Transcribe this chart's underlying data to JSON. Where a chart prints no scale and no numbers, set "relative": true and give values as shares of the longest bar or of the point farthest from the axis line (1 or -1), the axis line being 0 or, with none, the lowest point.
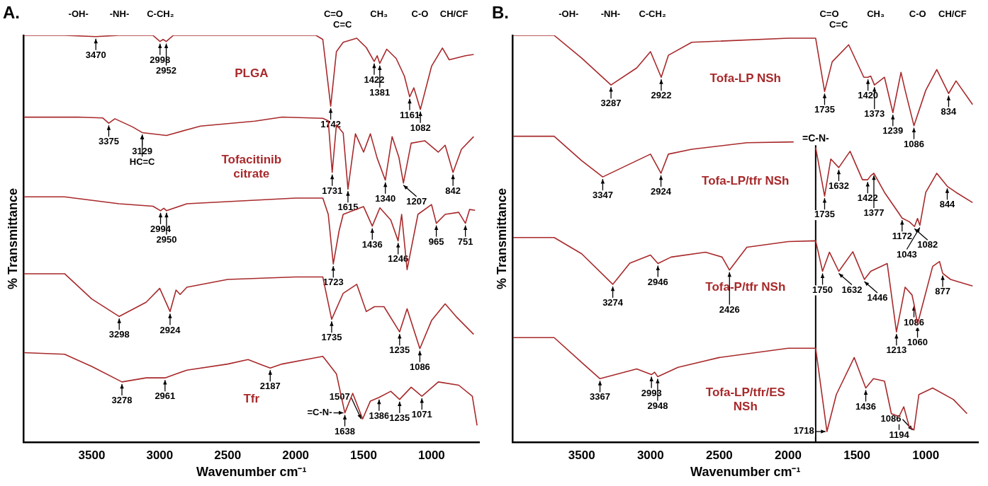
{
  "chart_data": [
    {
      "type": "line",
      "title": "A.",
      "xlabel": "Wavenumber cm⁻¹",
      "ylabel": "% Transmittance",
      "relative": true,
      "xlim": [
        4000,
        650
      ],
      "xticks": [
        3500,
        3000,
        2500,
        2000,
        1500,
        1000
      ],
      "grid": false,
      "legend": false,
      "marker": "none",
      "line_style": "solid",
      "series": [
        {
          "name": "PLGA",
          "color": "#a8292b",
          "x": [
            4000,
            3700,
            3470,
            3300,
            3050,
            2998,
            2975,
            2952,
            2900,
            2500,
            2000,
            1850,
            1800,
            1742,
            1700,
            1650,
            1550,
            1480,
            1422,
            1400,
            1381,
            1330,
            1260,
            1200,
            1161,
            1130,
            1082,
            1000,
            920,
            870,
            750,
            690
          ],
          "values": [
            1,
            1,
            0.997,
            1,
            1,
            0.985,
            0.99,
            0.985,
            1,
            1,
            1,
            1,
            0.99,
            0.826,
            0.96,
            0.983,
            0.993,
            0.97,
            0.936,
            0.95,
            0.931,
            0.966,
            0.943,
            0.9,
            0.849,
            0.871,
            0.818,
            0.924,
            0.969,
            0.94,
            0.95,
            0.953
          ]
        },
        {
          "name": "Tofacitinib citrate",
          "color": "#a8292b",
          "x": [
            4000,
            3600,
            3420,
            3375,
            3330,
            3200,
            3129,
            2950,
            2700,
            2300,
            2100,
            1800,
            1760,
            1731,
            1700,
            1650,
            1615,
            1560,
            1500,
            1450,
            1400,
            1340,
            1290,
            1240,
            1207,
            1150,
            1050,
            950,
            900,
            842,
            780,
            690
          ],
          "values": [
            0.799,
            0.799,
            0.797,
            0.784,
            0.795,
            0.775,
            0.761,
            0.754,
            0.777,
            0.789,
            0.799,
            0.796,
            0.79,
            0.663,
            0.78,
            0.76,
            0.622,
            0.758,
            0.713,
            0.758,
            0.698,
            0.644,
            0.751,
            0.7,
            0.637,
            0.735,
            0.741,
            0.713,
            0.73,
            0.663,
            0.72,
            0.751
          ]
        },
        {
          "color": "#a8292b",
          "x": [
            4000,
            3700,
            3300,
            3050,
            2994,
            2970,
            2950,
            2800,
            2000,
            1800,
            1760,
            1723,
            1680,
            1650,
            1500,
            1436,
            1380,
            1300,
            1246,
            1220,
            1180,
            1100,
            1000,
            965,
            900,
            800,
            751,
            720,
            680
          ],
          "values": [
            0.603,
            0.603,
            0.586,
            0.58,
            0.569,
            0.575,
            0.569,
            0.586,
            0.6,
            0.6,
            0.56,
            0.438,
            0.52,
            0.56,
            0.579,
            0.531,
            0.576,
            0.546,
            0.495,
            0.56,
            0.424,
            0.56,
            0.584,
            0.538,
            0.56,
            0.565,
            0.538,
            0.572,
            0.57
          ]
        },
        {
          "color": "#a8292b",
          "x": [
            4000,
            3700,
            3500,
            3298,
            3100,
            3000,
            2924,
            2880,
            2850,
            2800,
            2500,
            2000,
            1800,
            1735,
            1650,
            1550,
            1480,
            1420,
            1350,
            1235,
            1180,
            1086,
            1000,
            900,
            820,
            690
          ],
          "values": [
            0.414,
            0.414,
            0.352,
            0.309,
            0.344,
            0.378,
            0.321,
            0.374,
            0.363,
            0.381,
            0.4,
            0.406,
            0.406,
            0.302,
            0.366,
            0.388,
            0.321,
            0.333,
            0.333,
            0.271,
            0.328,
            0.23,
            0.299,
            0.34,
            0.309,
            0.265
          ]
        },
        {
          "name": "Tfr",
          "color": "#a8292b",
          "x": [
            4000,
            3700,
            3500,
            3278,
            3100,
            2961,
            2800,
            2500,
            2350,
            2250,
            2187,
            2100,
            1800,
            1700,
            1638,
            1580,
            1507,
            1450,
            1386,
            1300,
            1235,
            1150,
            1071,
            950,
            800,
            700,
            665
          ],
          "values": [
            0.22,
            0.216,
            0.186,
            0.148,
            0.158,
            0.158,
            0.177,
            0.192,
            0.203,
            0.19,
            0.182,
            0.192,
            0.211,
            0.168,
            0.072,
            0.12,
            0.057,
            0.101,
            0.11,
            0.125,
            0.105,
            0.135,
            0.113,
            0.148,
            0.14,
            0.113,
            0.041
          ]
        }
      ],
      "annotations": [
        "-OH-",
        "-NH-",
        "C-CH₂",
        "C=O",
        "C=C",
        "CH₃",
        "C-O",
        "CH/CF",
        {
          "text": "3470",
          "x": 3470,
          "y": 0.997
        },
        {
          "text": "2998",
          "x": 2998,
          "y": 0.985
        },
        {
          "text": "2952",
          "x": 2952,
          "y": 0.985
        },
        {
          "text": "1742",
          "x": 1742,
          "y": 0.826
        },
        {
          "text": "1422",
          "x": 1422,
          "y": 0.936
        },
        {
          "text": "1381",
          "x": 1381,
          "y": 0.931
        },
        {
          "text": "1161",
          "x": 1161,
          "y": 0.849
        },
        {
          "text": "1082",
          "x": 1082,
          "y": 0.818
        },
        {
          "text": "3375",
          "x": 3375,
          "y": 0.784
        },
        {
          "text": "3129",
          "x": 3129,
          "y": 0.761
        },
        {
          "text": "HC=C",
          "x": 3129,
          "y": 0.761
        },
        {
          "text": "1731",
          "x": 1731,
          "y": 0.663
        },
        {
          "text": "1615",
          "x": 1615,
          "y": 0.622
        },
        {
          "text": "1340",
          "x": 1340,
          "y": 0.644
        },
        {
          "text": "1207",
          "x": 1207,
          "y": 0.637
        },
        {
          "text": "842",
          "x": 842,
          "y": 0.663
        },
        {
          "text": "2994",
          "x": 2994,
          "y": 0.569
        },
        {
          "text": "2950",
          "x": 2950,
          "y": 0.569
        },
        {
          "text": "1723",
          "x": 1723,
          "y": 0.438
        },
        {
          "text": "1436",
          "x": 1436,
          "y": 0.531
        },
        {
          "text": "1246",
          "x": 1246,
          "y": 0.495
        },
        {
          "text": "965",
          "x": 965,
          "y": 0.538
        },
        {
          "text": "751",
          "x": 751,
          "y": 0.538
        },
        {
          "text": "3298",
          "x": 3298,
          "y": 0.309
        },
        {
          "text": "2924",
          "x": 2924,
          "y": 0.321
        },
        {
          "text": "1735",
          "x": 1735,
          "y": 0.302
        },
        {
          "text": "1235",
          "x": 1235,
          "y": 0.271
        },
        {
          "text": "1086",
          "x": 1086,
          "y": 0.23
        },
        {
          "text": "3278",
          "x": 3278,
          "y": 0.148
        },
        {
          "text": "2961",
          "x": 2961,
          "y": 0.158
        },
        {
          "text": "2187",
          "x": 2187,
          "y": 0.182
        },
        {
          "text": "1638",
          "x": 1638,
          "y": 0.072
        },
        {
          "text": "=C-N-",
          "x": 1638,
          "y": 0.072
        },
        {
          "text": "1507",
          "x": 1507,
          "y": 0.057
        },
        {
          "text": "1386",
          "x": 1386,
          "y": 0.11
        },
        {
          "text": "1235",
          "x": 1235,
          "y": 0.105
        },
        {
          "text": "1071",
          "x": 1071,
          "y": 0.113
        }
      ]
    },
    {
      "type": "line",
      "title": "B.",
      "xlabel": "Wavenumber cm⁻¹",
      "ylabel": "% Transmittance",
      "relative": true,
      "xlim": [
        4000,
        620
      ],
      "xticks": [
        3500,
        3000,
        2500,
        2000,
        1500,
        1000
      ],
      "grid": false,
      "legend": false,
      "marker": "none",
      "line_style": "solid",
      "ref_lines": [
        {
          "axis": "x",
          "value": 1800,
          "label": "=C-N-",
          "color": "#000000"
        }
      ],
      "series": [
        {
          "name": "Tofa-LP NSh",
          "color": "#a8292b",
          "x": [
            4000,
            3700,
            3500,
            3287,
            3100,
            3000,
            2922,
            2870,
            2700,
            2000,
            1800,
            1735,
            1680,
            1560,
            1450,
            1420,
            1400,
            1373,
            1300,
            1239,
            1180,
            1150,
            1086,
            1000,
            920,
            834,
            780,
            660
          ],
          "values": [
            1,
            1,
            0.944,
            0.878,
            0.92,
            0.96,
            0.897,
            0.951,
            0.983,
            0.993,
            0.993,
            0.862,
            0.935,
            0.977,
            0.897,
            0.897,
            0.9,
            0.878,
            0.897,
            0.81,
            0.909,
            0.865,
            0.778,
            0.865,
            0.916,
            0.857,
            0.888,
            0.83
          ]
        },
        {
          "name": "Tofa-LP/tfr NSh",
          "color": "#a8292b",
          "x": [
            4000,
            3700,
            3500,
            3347,
            3100,
            3000,
            2924,
            2870,
            2700,
            2300,
            1960,
            1900,
            1800,
            1735,
            1690,
            1632,
            1550,
            1460,
            1422,
            1400,
            1377,
            1300,
            1172,
            1120,
            1082,
            1060,
            1043,
            1000,
            920,
            844,
            780,
            660
          ],
          "values": [
            0.752,
            0.752,
            0.692,
            0.652,
            0.692,
            0.708,
            0.661,
            0.708,
            0.72,
            0.736,
            0.738,
            null,
            0.724,
            0.605,
            0.696,
            0.675,
            0.715,
            0.645,
            0.645,
            0.655,
            0.661,
            0.614,
            0.551,
            0.542,
            0.53,
            0.55,
            0.533,
            0.614,
            0.661,
            0.629,
            0.614,
            0.589
          ]
        },
        {
          "name": "Tofa-P/tfr NSh",
          "color": "#a8292b",
          "x": [
            4000,
            3700,
            3500,
            3274,
            3150,
            3000,
            2946,
            2850,
            2600,
            2480,
            2426,
            2300,
            2000,
            1800,
            1750,
            1700,
            1632,
            1530,
            1446,
            1400,
            1280,
            1213,
            1150,
            1100,
            1086,
            1060,
            950,
            900,
            877,
            820,
            700,
            660
          ],
          "values": [
            0.503,
            0.503,
            0.463,
            0.388,
            0.44,
            0.46,
            0.439,
            0.455,
            0.467,
            0.455,
            0.423,
            0.479,
            0.493,
            0.495,
            0.42,
            0.467,
            0.42,
            0.468,
            0.4,
            0.42,
            0.439,
            0.271,
            0.381,
            0.362,
            0.34,
            0.29,
            0.432,
            0.444,
            0.415,
            0.4,
            0.388,
            0.384
          ]
        },
        {
          "name": "Tofa-LP/tfr/ES NSh",
          "color": "#a8292b",
          "x": [
            4000,
            3700,
            3500,
            3367,
            3100,
            2993,
            2970,
            2948,
            2800,
            2500,
            2000,
            1800,
            1718,
            1650,
            1520,
            1436,
            1380,
            1300,
            1250,
            1194,
            1160,
            1120,
            1086,
            1050,
            950,
            800,
            700
          ],
          "values": [
            0.257,
            0.257,
            0.196,
            0.156,
            0.18,
            0.166,
            0.172,
            0.161,
            0.184,
            0.208,
            0.231,
            0.231,
            0.026,
            0.117,
            0.208,
            0.133,
            0.156,
            0.15,
            0.07,
            0.063,
            0.087,
            0.038,
            0.03,
            0.117,
            0.133,
            0.105,
            0.07
          ]
        }
      ],
      "annotations": [
        "-OH-",
        "-NH-",
        "C-CH₂",
        "C=O",
        "C=C",
        "CH₃",
        "C-O",
        "CH/CF",
        {
          "text": "3287",
          "x": 3287,
          "y": 0.878
        },
        {
          "text": "2922",
          "x": 2922,
          "y": 0.897
        },
        {
          "text": "1735",
          "x": 1735,
          "y": 0.862
        },
        {
          "text": "1420",
          "x": 1420,
          "y": 0.897
        },
        {
          "text": "1373",
          "x": 1373,
          "y": 0.878
        },
        {
          "text": "1239",
          "x": 1239,
          "y": 0.81
        },
        {
          "text": "1086",
          "x": 1086,
          "y": 0.778
        },
        {
          "text": "834",
          "x": 834,
          "y": 0.857
        },
        {
          "text": "3347",
          "x": 3347,
          "y": 0.652
        },
        {
          "text": "2924",
          "x": 2924,
          "y": 0.661
        },
        {
          "text": "1735",
          "x": 1735,
          "y": 0.605
        },
        {
          "text": "1632",
          "x": 1632,
          "y": 0.675
        },
        {
          "text": "1422",
          "x": 1422,
          "y": 0.645
        },
        {
          "text": "1377",
          "x": 1377,
          "y": 0.661
        },
        {
          "text": "1172",
          "x": 1172,
          "y": 0.551
        },
        {
          "text": "1082",
          "x": 1082,
          "y": 0.53
        },
        {
          "text": "1043",
          "x": 1043,
          "y": 0.533
        },
        {
          "text": "844",
          "x": 844,
          "y": 0.629
        },
        {
          "text": "3274",
          "x": 3274,
          "y": 0.388
        },
        {
          "text": "2946",
          "x": 2946,
          "y": 0.439
        },
        {
          "text": "2426",
          "x": 2426,
          "y": 0.423
        },
        {
          "text": "1750",
          "x": 1750,
          "y": 0.42
        },
        {
          "text": "1632",
          "x": 1632,
          "y": 0.42
        },
        {
          "text": "1446",
          "x": 1446,
          "y": 0.4
        },
        {
          "text": "1213",
          "x": 1213,
          "y": 0.271
        },
        {
          "text": "1060",
          "x": 1060,
          "y": 0.29
        },
        {
          "text": "1086",
          "x": 1086,
          "y": 0.34
        },
        {
          "text": "877",
          "x": 877,
          "y": 0.415
        },
        {
          "text": "3367",
          "x": 3367,
          "y": 0.156
        },
        {
          "text": "2993",
          "x": 2993,
          "y": 0.166
        },
        {
          "text": "2948",
          "x": 2948,
          "y": 0.161
        },
        {
          "text": "1718",
          "x": 1718,
          "y": 0.026
        },
        {
          "text": "1436",
          "x": 1436,
          "y": 0.133
        },
        {
          "text": "1194",
          "x": 1194,
          "y": 0.063
        },
        {
          "text": "1086",
          "x": 1086,
          "y": 0.03
        }
      ]
    }
  ]
}
